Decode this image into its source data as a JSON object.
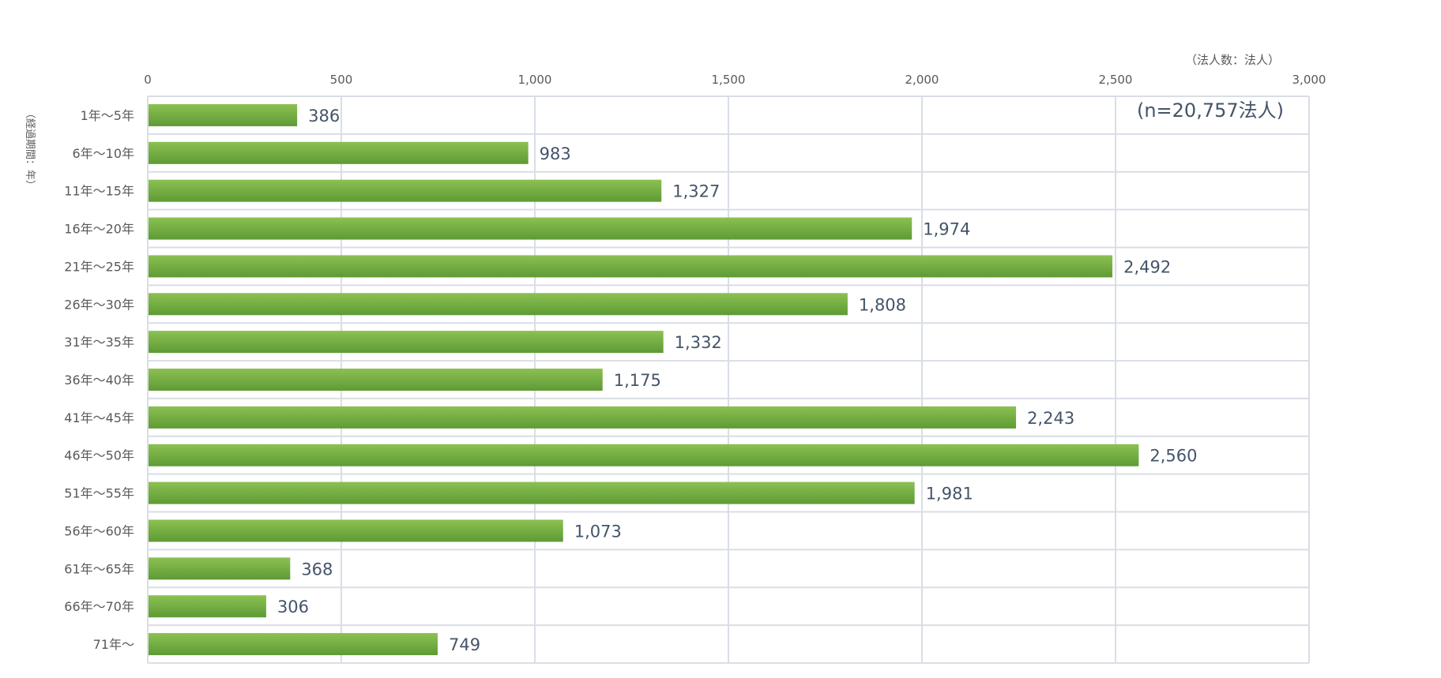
{
  "chart_data": {
    "type": "bar",
    "orientation": "horizontal",
    "categories": [
      "1年～5年",
      "6年～10年",
      "11年～15年",
      "16年～20年",
      "21年～25年",
      "26年～30年",
      "31年～35年",
      "36年～40年",
      "41年～45年",
      "46年～50年",
      "51年～55年",
      "56年～60年",
      "61年～65年",
      "66年～70年",
      "71年～"
    ],
    "values": [
      386,
      983,
      1327,
      1974,
      2492,
      1808,
      1332,
      1175,
      2243,
      2560,
      1981,
      1073,
      368,
      306,
      749
    ],
    "value_labels": [
      "386",
      "983",
      "1,327",
      "1,974",
      "2,492",
      "1,808",
      "1,332",
      "1,175",
      "2,243",
      "2,560",
      "1,981",
      "1,073",
      "368",
      "306",
      "749"
    ],
    "x_ticks": [
      0,
      500,
      1000,
      1500,
      2000,
      2500,
      3000
    ],
    "x_tick_labels": [
      "0",
      "500",
      "1,000",
      "1,500",
      "2,000",
      "2,500",
      "3,000"
    ],
    "xlim": [
      0,
      3000
    ],
    "x_unit_label": "（法人数：法人）",
    "y_unit_label": "（経過期間：年）",
    "annotation": "(n=20,757法人)",
    "x_axis_position": "top",
    "grid": true,
    "bar_color": "#70ad47"
  }
}
